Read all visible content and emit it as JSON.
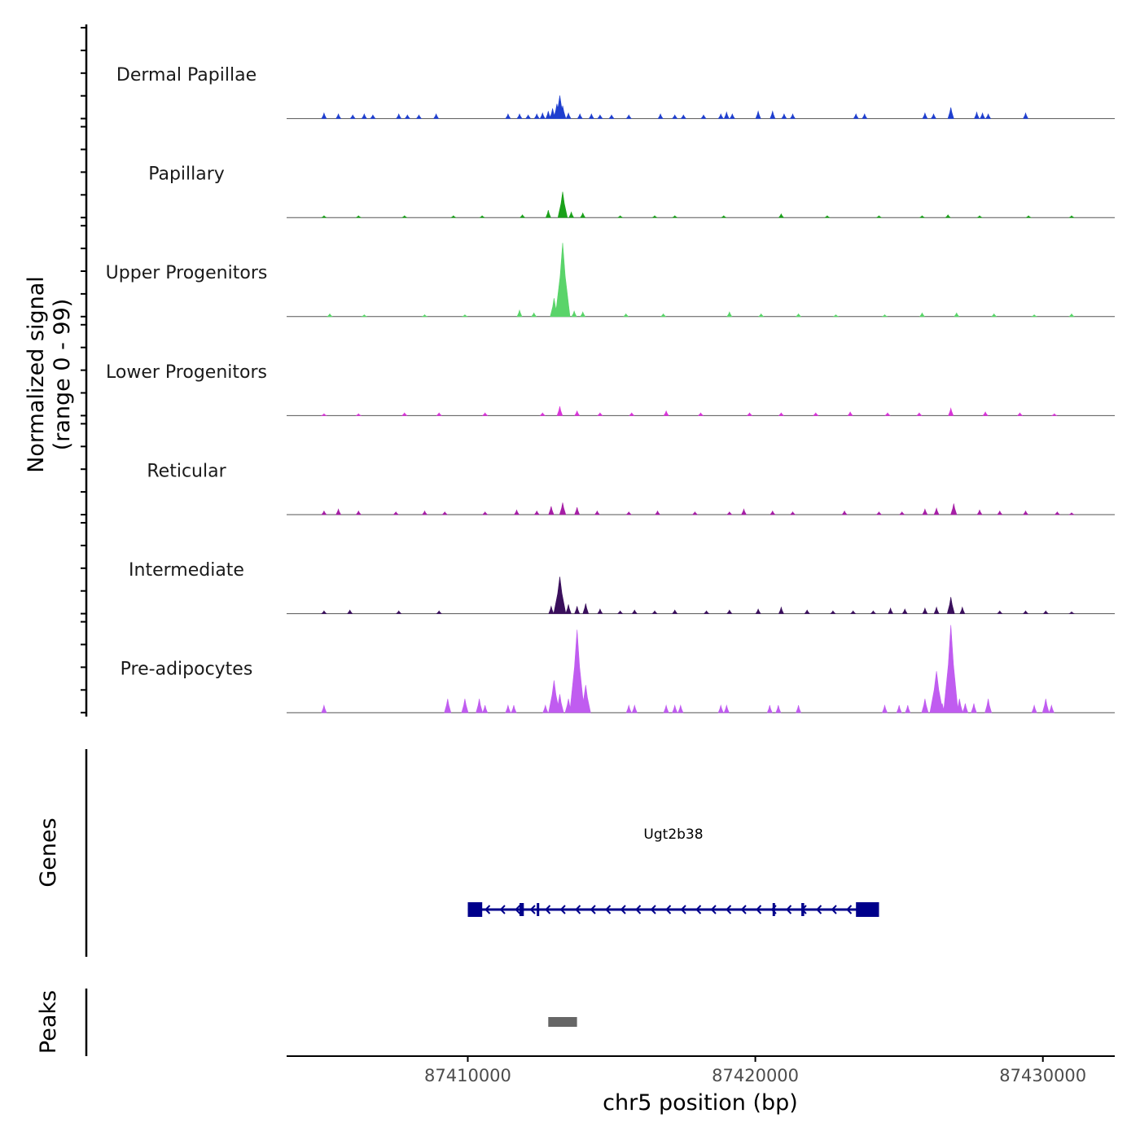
{
  "chart_data": {
    "type": "area",
    "title": "",
    "xlabel": "chr5 position (bp)",
    "ylabel_line1": "Normalized signal",
    "ylabel_line2": "(range 0 - 99)",
    "ylim": [
      0,
      99
    ],
    "xlim": [
      87403700,
      87432500
    ],
    "x_ticks": [
      87410000,
      87420000,
      87430000
    ],
    "x_tick_labels": [
      "87410000",
      "87420000",
      "87430000"
    ],
    "tracks": [
      {
        "name": "Dermal Papillae",
        "color": "#1f3fcf",
        "peaks": [
          [
            87405000,
            6
          ],
          [
            87405500,
            5
          ],
          [
            87406000,
            4
          ],
          [
            87406400,
            5
          ],
          [
            87406700,
            4
          ],
          [
            87407600,
            5
          ],
          [
            87407900,
            4
          ],
          [
            87408300,
            4
          ],
          [
            87408900,
            5
          ],
          [
            87411400,
            5
          ],
          [
            87411800,
            5
          ],
          [
            87412100,
            4
          ],
          [
            87412400,
            5
          ],
          [
            87412600,
            6
          ],
          [
            87412800,
            8
          ],
          [
            87412950,
            11
          ],
          [
            87413100,
            16
          ],
          [
            87413200,
            25
          ],
          [
            87413300,
            14
          ],
          [
            87413500,
            6
          ],
          [
            87413900,
            5
          ],
          [
            87414300,
            5
          ],
          [
            87414600,
            4
          ],
          [
            87415000,
            4
          ],
          [
            87415600,
            4
          ],
          [
            87416700,
            5
          ],
          [
            87417200,
            4
          ],
          [
            87417500,
            4
          ],
          [
            87418200,
            4
          ],
          [
            87418800,
            5
          ],
          [
            87419000,
            7
          ],
          [
            87419200,
            5
          ],
          [
            87420100,
            8
          ],
          [
            87420600,
            8
          ],
          [
            87421000,
            5
          ],
          [
            87421300,
            5
          ],
          [
            87423500,
            5
          ],
          [
            87423800,
            5
          ],
          [
            87425900,
            6
          ],
          [
            87426200,
            5
          ],
          [
            87426800,
            12
          ],
          [
            87427700,
            7
          ],
          [
            87427900,
            6
          ],
          [
            87428100,
            5
          ],
          [
            87429400,
            6
          ]
        ]
      },
      {
        "name": "Papillary",
        "color": "#1aa11a",
        "peaks": [
          [
            87405000,
            2
          ],
          [
            87406200,
            2
          ],
          [
            87407800,
            2
          ],
          [
            87409500,
            2
          ],
          [
            87410500,
            2
          ],
          [
            87411900,
            3
          ],
          [
            87412800,
            8
          ],
          [
            87413300,
            28
          ],
          [
            87413600,
            6
          ],
          [
            87414000,
            5
          ],
          [
            87415300,
            2
          ],
          [
            87416500,
            2
          ],
          [
            87417200,
            2
          ],
          [
            87418900,
            2
          ],
          [
            87420900,
            4
          ],
          [
            87422500,
            2
          ],
          [
            87424300,
            2
          ],
          [
            87425800,
            2
          ],
          [
            87426700,
            3
          ],
          [
            87427800,
            2
          ],
          [
            87429500,
            2
          ],
          [
            87431000,
            2
          ]
        ]
      },
      {
        "name": "Upper Progenitors",
        "color": "#5ad46a",
        "peaks": [
          [
            87405200,
            3
          ],
          [
            87406400,
            2
          ],
          [
            87408500,
            2
          ],
          [
            87409900,
            2
          ],
          [
            87411800,
            7
          ],
          [
            87412300,
            4
          ],
          [
            87413000,
            20
          ],
          [
            87413300,
            80
          ],
          [
            87413700,
            6
          ],
          [
            87414000,
            5
          ],
          [
            87415500,
            3
          ],
          [
            87416800,
            3
          ],
          [
            87419100,
            5
          ],
          [
            87420200,
            3
          ],
          [
            87421500,
            3
          ],
          [
            87422800,
            2
          ],
          [
            87424500,
            2
          ],
          [
            87425800,
            4
          ],
          [
            87427000,
            4
          ],
          [
            87428300,
            3
          ],
          [
            87429700,
            2
          ],
          [
            87431000,
            3
          ]
        ]
      },
      {
        "name": "Lower Progenitors",
        "color": "#d935d9",
        "peaks": [
          [
            87405000,
            2
          ],
          [
            87406200,
            2
          ],
          [
            87407800,
            3
          ],
          [
            87409000,
            3
          ],
          [
            87410600,
            3
          ],
          [
            87412600,
            3
          ],
          [
            87413200,
            10
          ],
          [
            87413800,
            5
          ],
          [
            87414600,
            3
          ],
          [
            87415700,
            3
          ],
          [
            87416900,
            5
          ],
          [
            87418100,
            3
          ],
          [
            87419800,
            3
          ],
          [
            87420900,
            3
          ],
          [
            87422100,
            3
          ],
          [
            87423300,
            4
          ],
          [
            87424600,
            3
          ],
          [
            87425700,
            3
          ],
          [
            87426800,
            8
          ],
          [
            87428000,
            4
          ],
          [
            87429200,
            3
          ],
          [
            87430400,
            2
          ]
        ]
      },
      {
        "name": "Reticular",
        "color": "#a61fa6",
        "peaks": [
          [
            87405000,
            4
          ],
          [
            87405500,
            6
          ],
          [
            87406200,
            4
          ],
          [
            87407500,
            3
          ],
          [
            87408500,
            4
          ],
          [
            87409200,
            3
          ],
          [
            87410600,
            3
          ],
          [
            87411700,
            5
          ],
          [
            87412400,
            4
          ],
          [
            87412900,
            9
          ],
          [
            87413300,
            13
          ],
          [
            87413800,
            8
          ],
          [
            87414500,
            4
          ],
          [
            87415600,
            3
          ],
          [
            87416600,
            4
          ],
          [
            87417900,
            3
          ],
          [
            87419100,
            3
          ],
          [
            87419600,
            6
          ],
          [
            87420600,
            4
          ],
          [
            87421300,
            3
          ],
          [
            87423100,
            4
          ],
          [
            87424300,
            3
          ],
          [
            87425100,
            3
          ],
          [
            87425900,
            6
          ],
          [
            87426300,
            7
          ],
          [
            87426900,
            12
          ],
          [
            87427800,
            5
          ],
          [
            87428500,
            4
          ],
          [
            87429400,
            4
          ],
          [
            87430500,
            3
          ],
          [
            87431000,
            2
          ]
        ]
      },
      {
        "name": "Intermediate",
        "color": "#3a0f5c",
        "peaks": [
          [
            87405000,
            3
          ],
          [
            87405900,
            4
          ],
          [
            87407600,
            3
          ],
          [
            87409000,
            3
          ],
          [
            87412900,
            8
          ],
          [
            87413200,
            40
          ],
          [
            87413500,
            10
          ],
          [
            87413800,
            8
          ],
          [
            87414100,
            11
          ],
          [
            87414600,
            5
          ],
          [
            87415300,
            3
          ],
          [
            87415800,
            4
          ],
          [
            87416500,
            3
          ],
          [
            87417200,
            4
          ],
          [
            87418300,
            3
          ],
          [
            87419100,
            4
          ],
          [
            87420100,
            5
          ],
          [
            87420900,
            7
          ],
          [
            87421800,
            4
          ],
          [
            87422700,
            3
          ],
          [
            87423400,
            3
          ],
          [
            87424100,
            3
          ],
          [
            87424700,
            6
          ],
          [
            87425200,
            5
          ],
          [
            87425900,
            6
          ],
          [
            87426300,
            7
          ],
          [
            87426800,
            18
          ],
          [
            87427200,
            7
          ],
          [
            87428500,
            3
          ],
          [
            87429400,
            3
          ],
          [
            87430100,
            3
          ],
          [
            87431000,
            2
          ]
        ]
      },
      {
        "name": "Pre-adipocytes",
        "color": "#c05cf0",
        "peaks": [
          [
            87405000,
            8
          ],
          [
            87409300,
            15
          ],
          [
            87409900,
            15
          ],
          [
            87410400,
            15
          ],
          [
            87410600,
            8
          ],
          [
            87411400,
            8
          ],
          [
            87411600,
            8
          ],
          [
            87412700,
            8
          ],
          [
            87413000,
            35
          ],
          [
            87413200,
            20
          ],
          [
            87413500,
            15
          ],
          [
            87413800,
            90
          ],
          [
            87414100,
            30
          ],
          [
            87415600,
            8
          ],
          [
            87415800,
            8
          ],
          [
            87416900,
            8
          ],
          [
            87417200,
            8
          ],
          [
            87417400,
            8
          ],
          [
            87418800,
            8
          ],
          [
            87419000,
            8
          ],
          [
            87420500,
            8
          ],
          [
            87420800,
            8
          ],
          [
            87421500,
            8
          ],
          [
            87424500,
            8
          ],
          [
            87425000,
            8
          ],
          [
            87425300,
            8
          ],
          [
            87425900,
            15
          ],
          [
            87426300,
            45
          ],
          [
            87426500,
            10
          ],
          [
            87426800,
            95
          ],
          [
            87427100,
            15
          ],
          [
            87427300,
            10
          ],
          [
            87427600,
            10
          ],
          [
            87428100,
            15
          ],
          [
            87429700,
            8
          ],
          [
            87430100,
            15
          ],
          [
            87430300,
            8
          ]
        ]
      }
    ],
    "genes_track": {
      "label": "Genes",
      "gene_name": "Ugt2b38",
      "color": "#00008b",
      "start": 87410000,
      "end": 87424300,
      "strand": "-",
      "exons": [
        [
          87410000,
          87410500
        ],
        [
          87411800,
          87411950
        ],
        [
          87412400,
          87412450
        ],
        [
          87420600,
          87420650
        ],
        [
          87421600,
          87421700
        ],
        [
          87423500,
          87424300
        ]
      ]
    },
    "peaks_track": {
      "label": "Peaks",
      "color": "#666666",
      "regions": [
        [
          87412800,
          87413800
        ]
      ]
    }
  }
}
